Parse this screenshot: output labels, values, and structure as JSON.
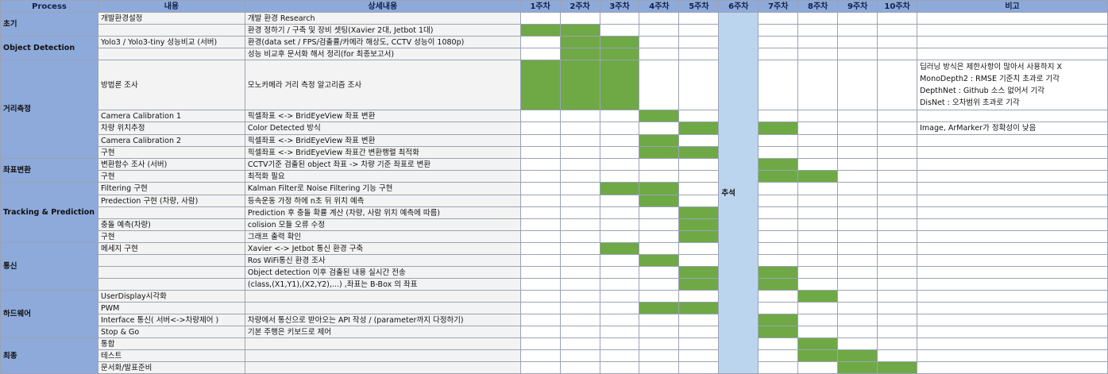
{
  "header": {
    "process": "Process",
    "content": "내용",
    "detail": "상세내용",
    "weeks": [
      "1주차",
      "2주차",
      "3주차",
      "4주차",
      "5주차",
      "6주차",
      "7주차",
      "8주차",
      "9주차",
      "10주차"
    ],
    "note": "비고"
  },
  "week6_label": "추석",
  "colors": {
    "header": "#8eaadb",
    "active": "#6fa946",
    "holiday": "#bcd5ee",
    "cell_gray": "#f3f3f3"
  },
  "rows": [
    {
      "process": "초기",
      "content": "개발환경설정",
      "detail": "개발 환경 Research",
      "weeks": []
    },
    {
      "content": "",
      "detail": "환경 정하기 / 구축 및 장비 셋팅(Xavier 2대, Jetbot 1대)",
      "weeks": [
        1,
        2
      ]
    },
    {
      "process": "Object Detection",
      "content": "Yolo3 / Yolo3-tiny 성능비교 (서버)",
      "detail": "환경(data set / FPS/검출률/카메라 해상도, CCTV 성능이 1080p)",
      "weeks": [
        2,
        3
      ]
    },
    {
      "content": "",
      "detail": "성능 비교후 문서화 해서 정리(for 최종보고서)",
      "weeks": [
        2,
        3
      ]
    },
    {
      "process": "거리측정",
      "content": "방법론 조사",
      "detail": "모노카메라 거리 측정 알고리즘 조사",
      "weeks": [
        1,
        2,
        3
      ],
      "note": [
        "딥러닝 방식은 제한사항이 많아서 사용하지 X",
        "MonoDepth2 : RMSE 기준치 초과로 기각",
        "DepthNet : Github 소스 없어서 기각",
        "DisNet : 오차범위 초과로 기각"
      ]
    },
    {
      "content": "Camera Calibration 1",
      "detail": "픽셀좌표 <-> BridEyeView 좌표 변환",
      "weeks": [
        4
      ]
    },
    {
      "content": "차량 위치추정",
      "detail": "Color Detected 방식",
      "weeks": [
        5,
        7
      ],
      "note": [
        "Image, ArMarker가 정확성이 낮음"
      ]
    },
    {
      "content": "Camera Calibration 2",
      "detail": "픽셀좌표 <-> BridEyeView 좌표 변환",
      "weeks": [
        4
      ]
    },
    {
      "content": "구현",
      "detail": "픽셀좌표 <-> BridEyeView 좌표간 변환행렬 최적화",
      "weeks": [
        4,
        5
      ]
    },
    {
      "process": "좌표변환",
      "content": "변환함수 조사 (서버)",
      "detail": "CCTV기준 검출된 object 좌표 -> 차량 기준 좌표로 변환",
      "weeks": [
        7
      ]
    },
    {
      "content": "구현",
      "detail": "최적화 필요",
      "weeks": [
        7,
        8
      ]
    },
    {
      "process": "Tracking & Prediction",
      "content": "Filtering 구현",
      "detail": "Kalman Filter로 Noise Filtering 기능 구현",
      "weeks": [
        3,
        4
      ]
    },
    {
      "content": "Predection 구현 (차량, 사람)",
      "detail": "등속운동 가정 하에 n초 뒤 위치 예측",
      "weeks": [
        4
      ]
    },
    {
      "content": "",
      "detail": "Prediction 후 충돌 확률 계산 (차량, 사람 위치 예측에 따름)",
      "weeks": [
        5
      ]
    },
    {
      "content": "충돌 예측(차량)",
      "detail": "colision 모듈 오류 수정",
      "weeks": [
        5
      ]
    },
    {
      "content": "구현",
      "detail": "그래프 출력 확인",
      "weeks": [
        5
      ]
    },
    {
      "process": "통신",
      "content": "메세지 구현",
      "detail": "Xavier <-> Jetbot 통신 환경 구축",
      "weeks": [
        3
      ]
    },
    {
      "content": "",
      "detail": "Ros WiFi통신 환경 조사",
      "weeks": [
        4
      ]
    },
    {
      "content": "",
      "detail": "Object detection 이후 검출된 내용 실시간 전송",
      "weeks": [
        5,
        7
      ]
    },
    {
      "content": "",
      "detail": "(class,(X1,Y1),(X2,Y2),...) ,좌표는 B-Box 의 좌표",
      "weeks": [
        5,
        7
      ]
    },
    {
      "process": "하드웨어",
      "content": "UserDisplay시각화",
      "detail": "",
      "weeks": [
        8
      ]
    },
    {
      "content": "PWM",
      "detail": "",
      "weeks": [
        4,
        5
      ]
    },
    {
      "content": "Interface 통신( 서버<->차량제어 )",
      "detail": "차량에서 통신으로 받아오는 API 작성 / (parameter까지 다정하기)",
      "weeks": [
        7
      ]
    },
    {
      "content": "Stop & Go",
      "detail": "기본 주행은 키보드로 제어",
      "weeks": [
        7
      ]
    },
    {
      "process": "최종",
      "content": "통합",
      "detail": "",
      "weeks": [
        8
      ]
    },
    {
      "content": "테스트",
      "detail": "",
      "weeks": [
        8,
        9
      ]
    },
    {
      "content": "문서화/발표준비",
      "detail": "",
      "weeks": [
        9,
        10
      ]
    }
  ]
}
